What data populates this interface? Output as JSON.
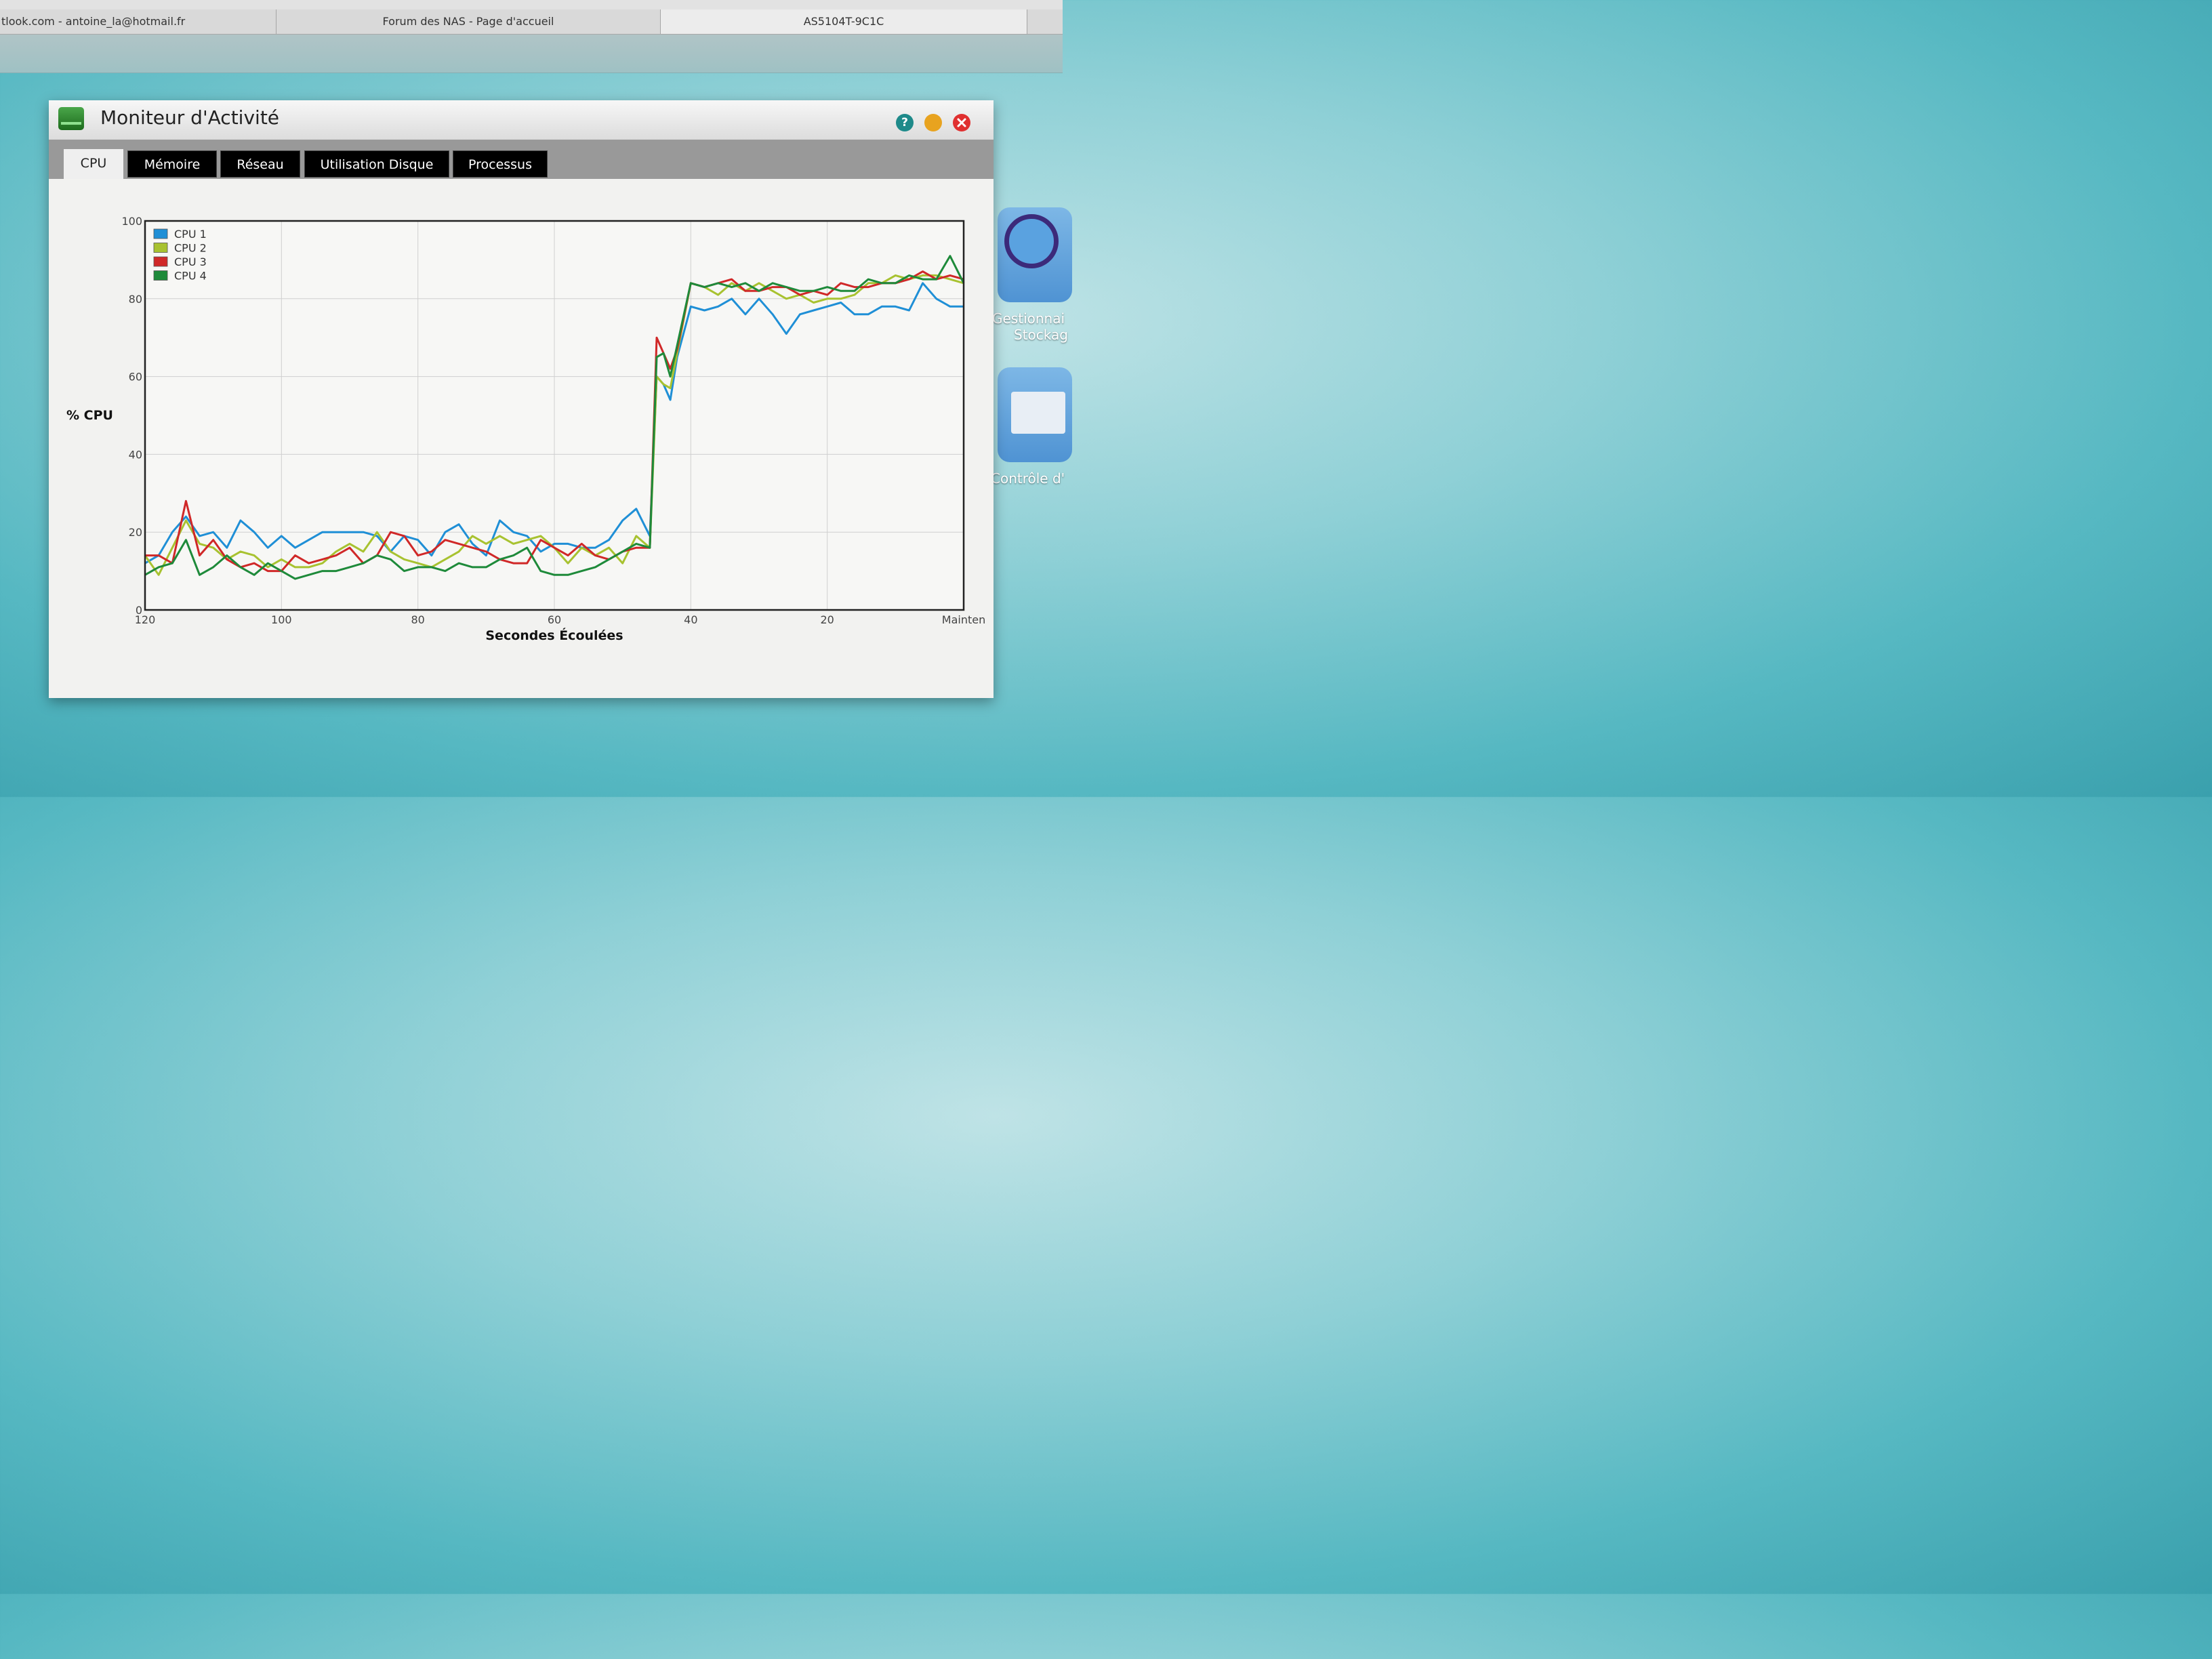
{
  "browser": {
    "tabs": [
      "tlook.com - antoine_la@hotmail.fr",
      "Forum des NAS - Page d'accueil",
      "AS5104T-9C1C"
    ]
  },
  "window": {
    "title": "Moniteur d'Activité",
    "help_icon": "?",
    "controls": [
      "help-icon",
      "minimize-icon",
      "close-icon"
    ],
    "tabs": [
      "CPU",
      "Mémoire",
      "Réseau",
      "Utilisation Disque",
      "Processus"
    ],
    "active_tab": "CPU"
  },
  "desktop": {
    "icons": [
      {
        "label_line1": "Gestionnai",
        "label_line2": "Stockag"
      },
      {
        "label_line1": "Contrôle d'"
      }
    ]
  },
  "chart_data": {
    "type": "line",
    "xlabel": "Secondes Écoulées",
    "ylabel": "% CPU",
    "x_tick_labels": [
      "120",
      "100",
      "80",
      "60",
      "40",
      "20",
      "Mainten"
    ],
    "y_tick_labels": [
      "0",
      "20",
      "40",
      "60",
      "80",
      "100"
    ],
    "xlim": [
      120,
      0
    ],
    "ylim": [
      0,
      100
    ],
    "grid": true,
    "legend_position": "top-left",
    "x": [
      120,
      118,
      116,
      114,
      112,
      110,
      108,
      106,
      104,
      102,
      100,
      98,
      96,
      94,
      92,
      90,
      88,
      86,
      84,
      82,
      80,
      78,
      76,
      74,
      72,
      70,
      68,
      66,
      64,
      62,
      60,
      58,
      56,
      54,
      52,
      50,
      48,
      46,
      45,
      44,
      43,
      42,
      40,
      38,
      36,
      34,
      32,
      30,
      28,
      26,
      24,
      22,
      20,
      18,
      16,
      14,
      12,
      10,
      8,
      6,
      4,
      2,
      0
    ],
    "series": [
      {
        "name": "CPU 1",
        "color": "#1f8fd6",
        "values": [
          12,
          14,
          20,
          24,
          19,
          20,
          16,
          23,
          20,
          16,
          19,
          16,
          18,
          20,
          20,
          20,
          20,
          19,
          15,
          19,
          18,
          14,
          20,
          22,
          17,
          14,
          23,
          20,
          19,
          15,
          17,
          17,
          16,
          16,
          18,
          23,
          26,
          19,
          60,
          58,
          54,
          65,
          78,
          77,
          78,
          80,
          76,
          80,
          76,
          71,
          76,
          77,
          78,
          79,
          76,
          76,
          78,
          78,
          77,
          84,
          80,
          78,
          78
        ]
      },
      {
        "name": "CPU 2",
        "color": "#a8c230",
        "values": [
          14,
          9,
          16,
          23,
          17,
          16,
          13,
          15,
          14,
          11,
          13,
          11,
          11,
          12,
          15,
          17,
          15,
          20,
          15,
          13,
          12,
          11,
          13,
          15,
          19,
          17,
          19,
          17,
          18,
          19,
          16,
          12,
          16,
          14,
          16,
          12,
          19,
          16,
          60,
          58,
          57,
          66,
          84,
          83,
          81,
          84,
          82,
          84,
          82,
          80,
          81,
          79,
          80,
          80,
          81,
          84,
          84,
          86,
          85,
          86,
          86,
          85,
          84
        ]
      },
      {
        "name": "CPU 3",
        "color": "#d02828",
        "values": [
          14,
          14,
          12,
          28,
          14,
          18,
          13,
          11,
          12,
          10,
          10,
          14,
          12,
          13,
          14,
          16,
          12,
          14,
          20,
          19,
          14,
          15,
          18,
          17,
          16,
          15,
          13,
          12,
          12,
          18,
          16,
          14,
          17,
          14,
          13,
          15,
          16,
          16,
          70,
          66,
          62,
          67,
          84,
          83,
          84,
          85,
          82,
          82,
          83,
          83,
          81,
          82,
          81,
          84,
          83,
          83,
          84,
          84,
          85,
          87,
          85,
          86,
          85
        ]
      },
      {
        "name": "CPU 4",
        "color": "#1e8a3a",
        "values": [
          9,
          11,
          12,
          18,
          9,
          11,
          14,
          11,
          9,
          12,
          10,
          8,
          9,
          10,
          10,
          11,
          12,
          14,
          13,
          10,
          11,
          11,
          10,
          12,
          11,
          11,
          13,
          14,
          16,
          10,
          9,
          9,
          10,
          11,
          13,
          15,
          17,
          16,
          65,
          66,
          60,
          68,
          84,
          83,
          84,
          83,
          84,
          82,
          84,
          83,
          82,
          82,
          83,
          82,
          82,
          85,
          84,
          84,
          86,
          85,
          85,
          91,
          84
        ]
      }
    ]
  }
}
